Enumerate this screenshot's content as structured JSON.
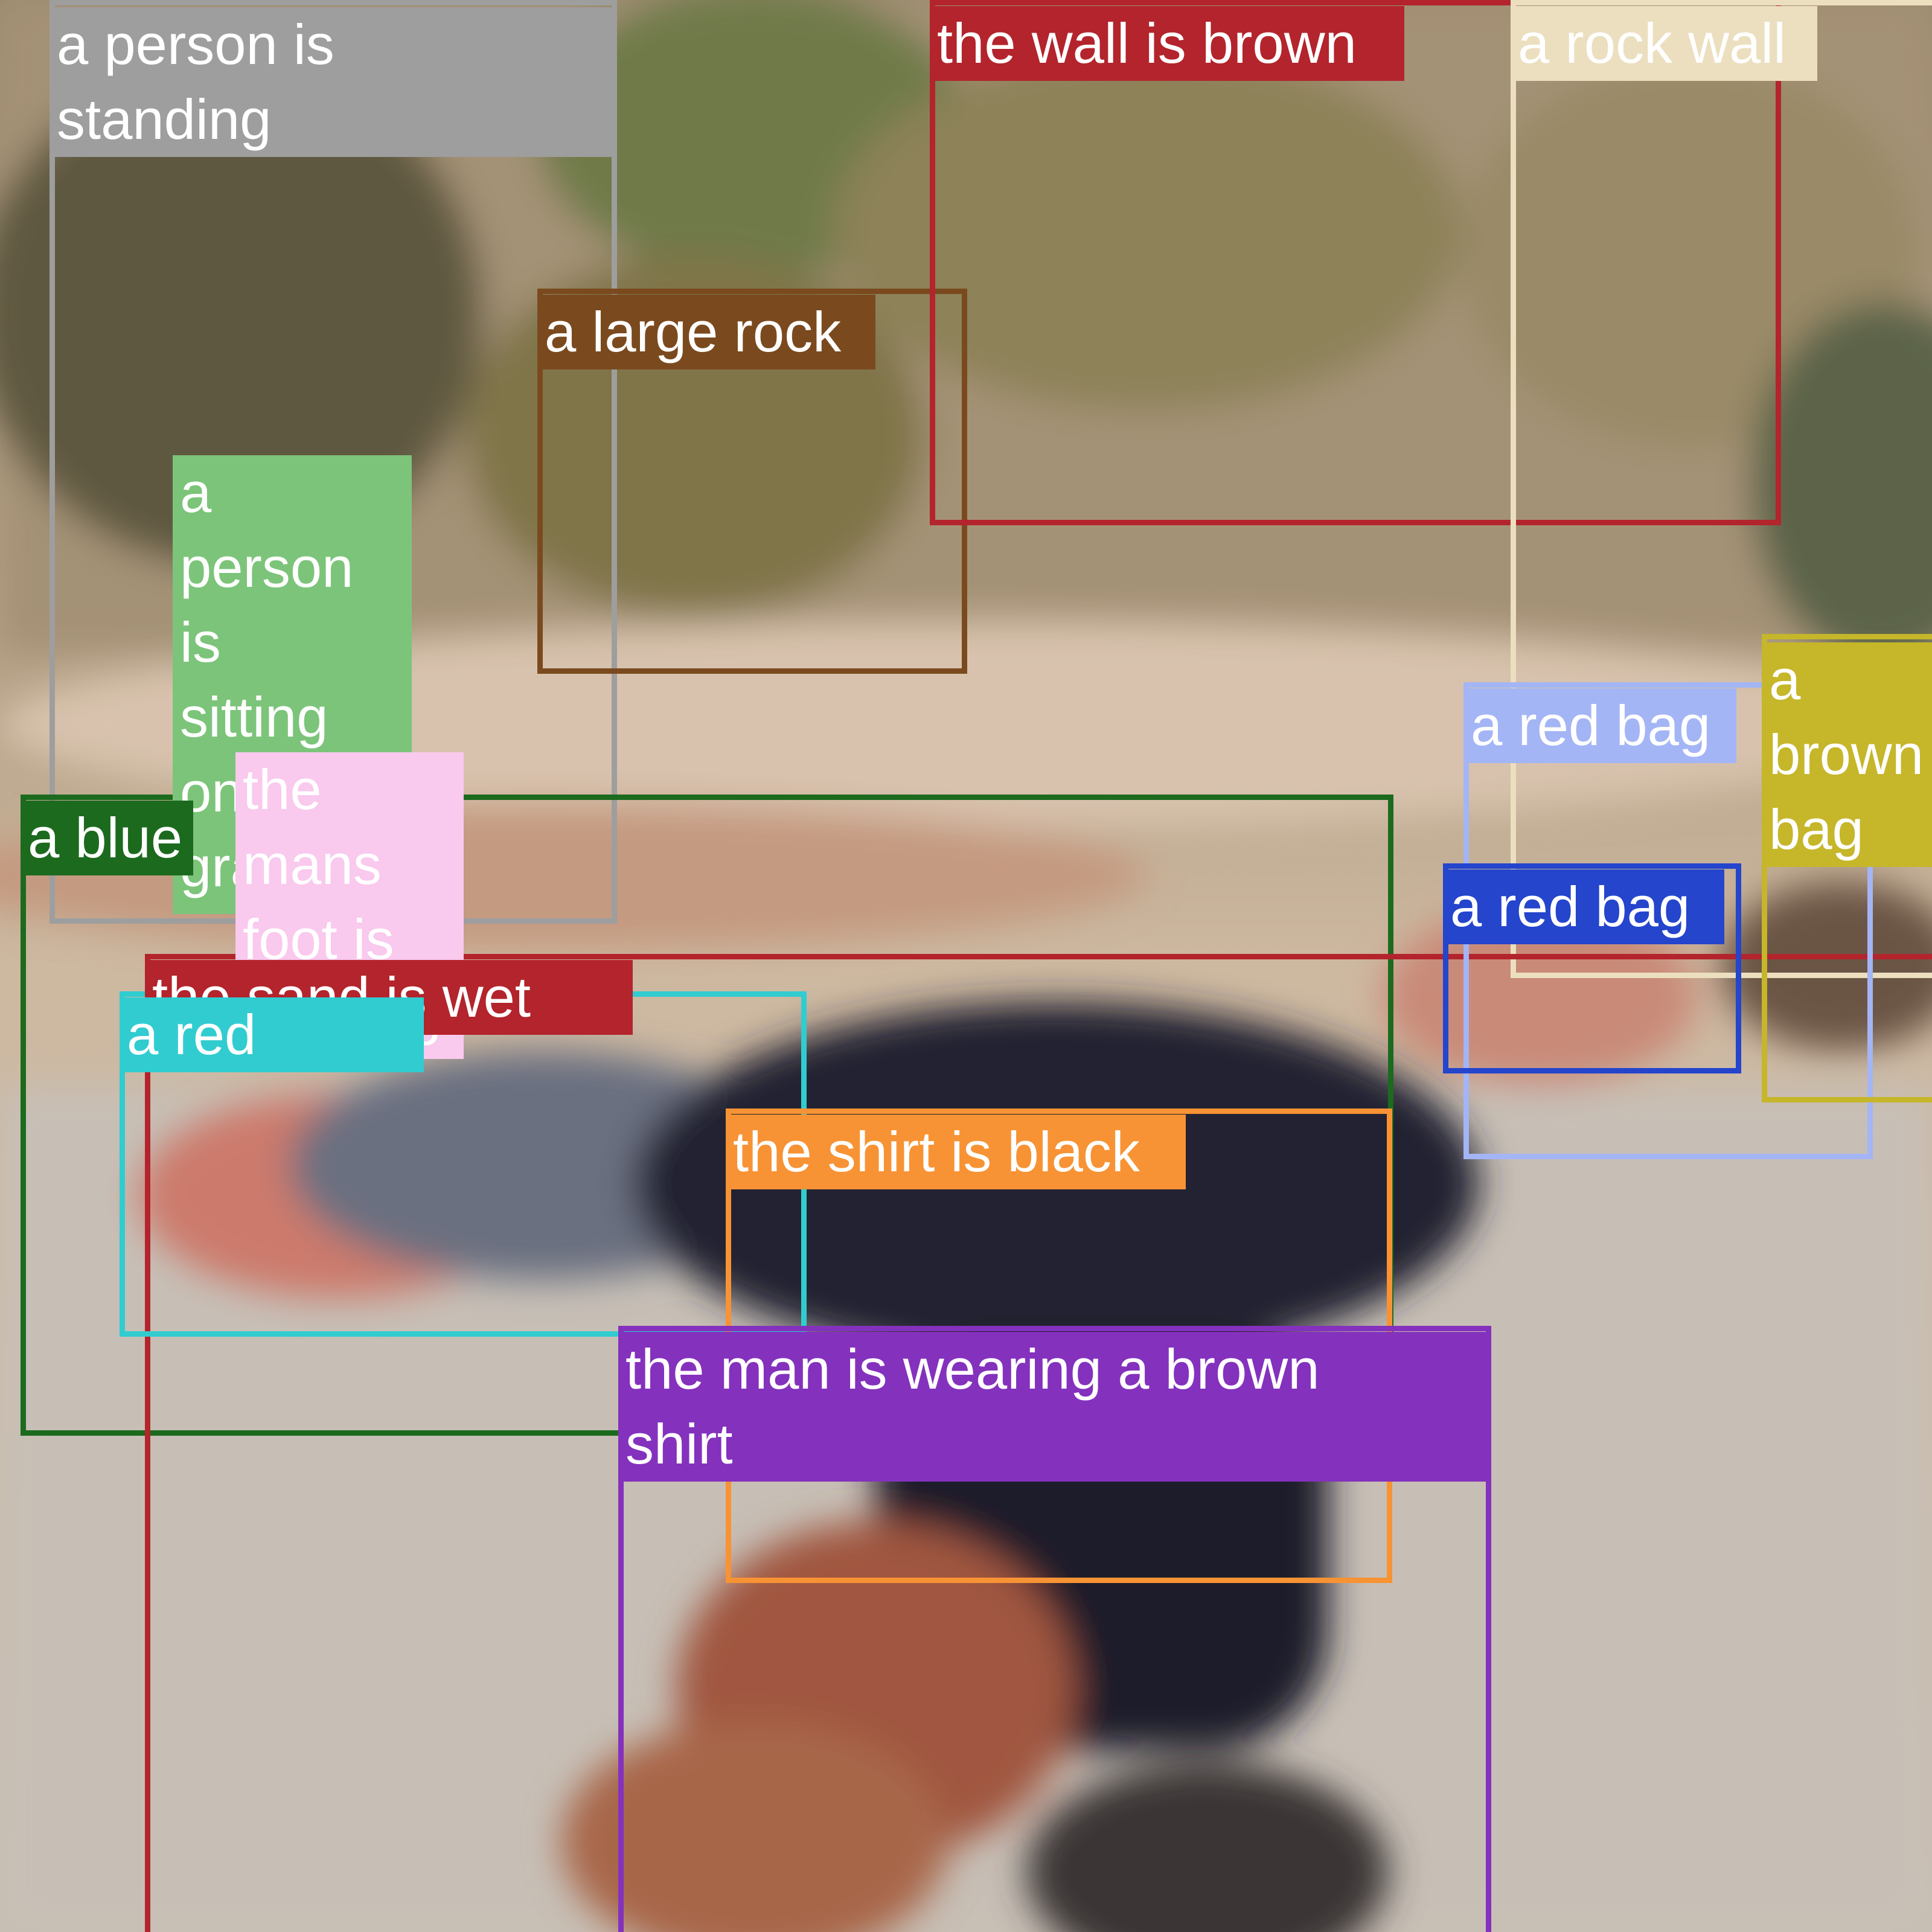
{
  "scene": {
    "kind": "photo",
    "subject": "a person doing a handstand on a sandy rock ledge",
    "palette": {
      "sand": "#c9b8a0",
      "rock": "#b09a80",
      "shadow": "#5f4e3e",
      "foliage": "#6f7a4a",
      "shirt": "#1e1f29",
      "skin": "#a0563f",
      "sleeve": "#6a6f80"
    }
  },
  "annotations": [
    {
      "id": "person-standing",
      "text": "a person is\nstanding",
      "color": "#9e9e9e"
    },
    {
      "id": "large-rock",
      "text": "a large rock",
      "color": "#7a4a1e"
    },
    {
      "id": "wall-brown",
      "text": "the wall is brown",
      "color": "#b3242c"
    },
    {
      "id": "rock-wall",
      "text": "a rock wall",
      "color": "#ecdfbf"
    },
    {
      "id": "person-sitting",
      "text": "a\nperson\nis\nsitting\non the\ngrass",
      "color": "#7cc47a"
    },
    {
      "id": "mans-foot",
      "text": "the\nmans\nfoot is\nwearing",
      "color": "#f9c9ee"
    },
    {
      "id": "blue-item",
      "text": "a blue",
      "color": "#1c6a1e"
    },
    {
      "id": "is-wet",
      "text": "the sand is wet",
      "color": "#b3242c"
    },
    {
      "id": "red-item",
      "text": "a red",
      "color": "#31ccd0"
    },
    {
      "id": "red-bag-1",
      "text": "a red bag",
      "color": "#a3b5f5"
    },
    {
      "id": "red-bag-2",
      "text": "a red bag",
      "color": "#2445cc"
    },
    {
      "id": "brown-bag",
      "text": "a\nbrown\nbag",
      "color": "#c6b62a"
    },
    {
      "id": "shirt-black",
      "text": "the shirt is black",
      "color": "#f79334"
    },
    {
      "id": "man-shirt",
      "text": "the man is wearing a brown\nshirt",
      "color": "#8431bd"
    }
  ]
}
